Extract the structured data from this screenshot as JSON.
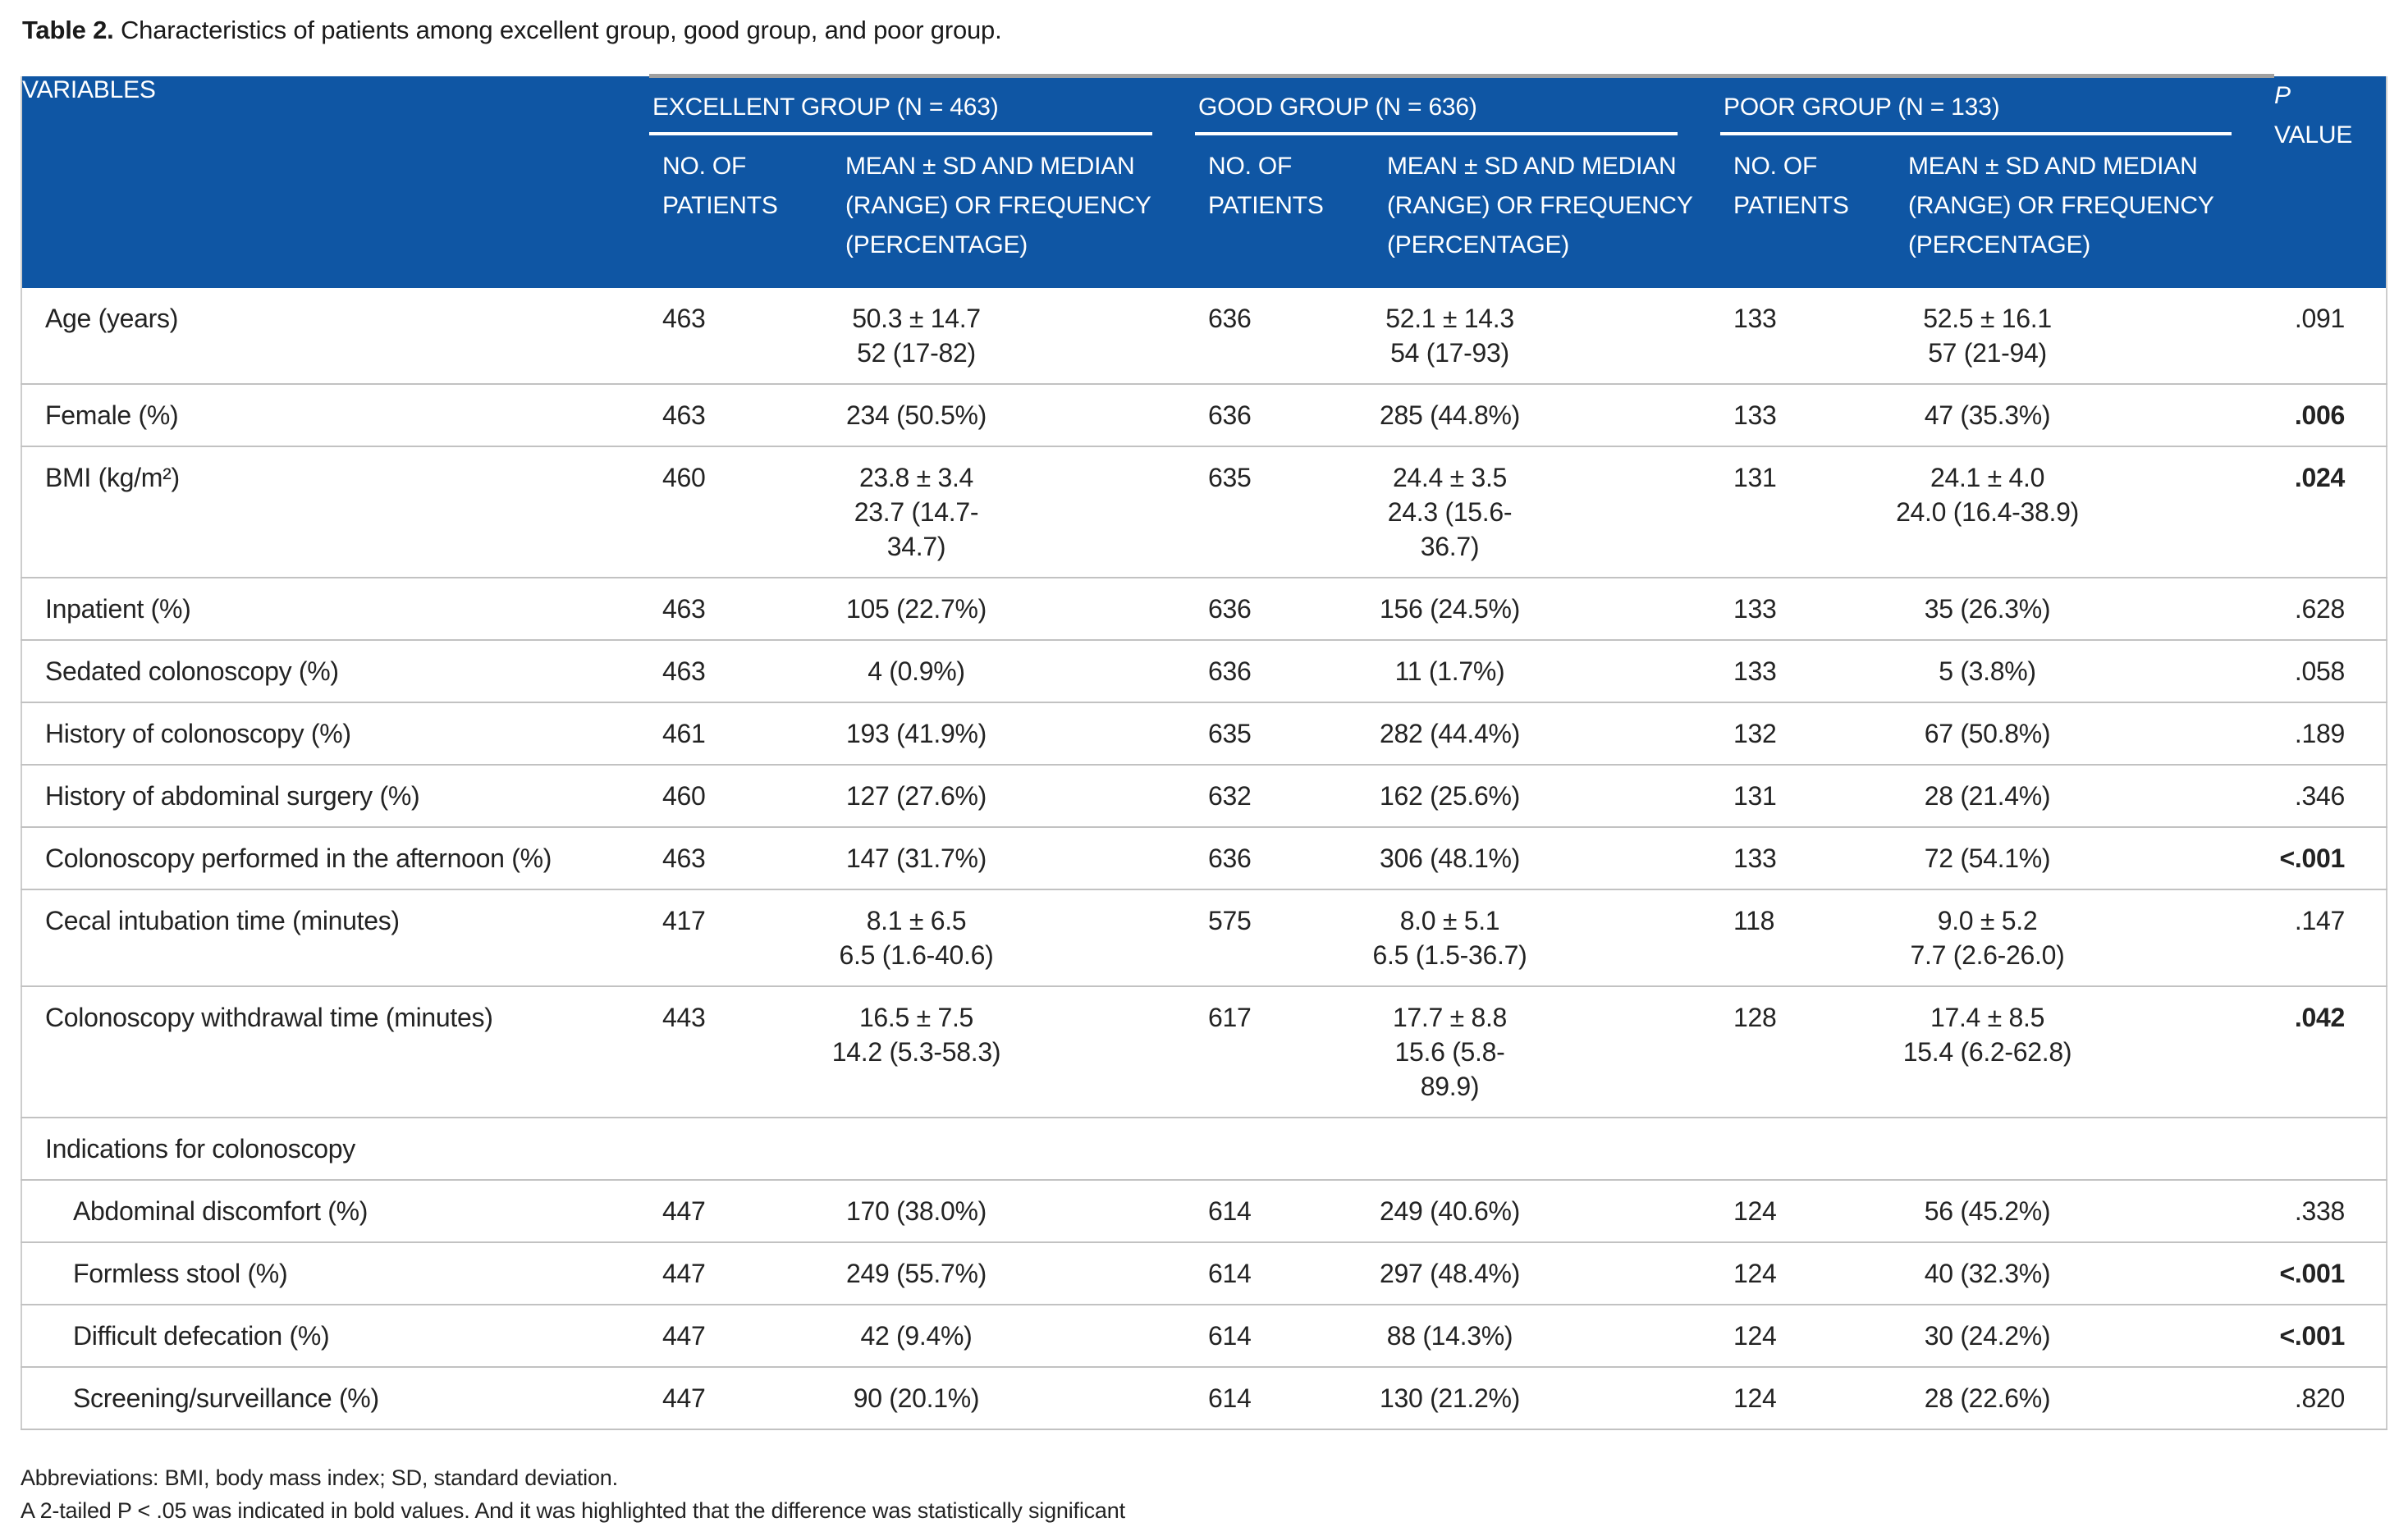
{
  "title": {
    "label": "Table 2.",
    "text": "Characteristics of patients among excellent group, good group, and poor group."
  },
  "header": {
    "variables": "VARIABLES",
    "groups": [
      {
        "name": "EXCELLENT GROUP (N = 463)"
      },
      {
        "name": "GOOD GROUP (N = 636)"
      },
      {
        "name": "POOR GROUP (N = 133)"
      }
    ],
    "sub_n": "NO. OF PATIENTS",
    "sub_mean": "MEAN ± SD AND MEDIAN (RANGE) OR FREQUENCY (PERCENTAGE)",
    "p_line1": "P",
    "p_line2": "VALUE"
  },
  "rows": [
    {
      "label": "Age (years)",
      "indent": false,
      "section": false,
      "groups": [
        {
          "n": "463",
          "line1": "50.3 ± 14.7",
          "line2": "52 (17-82)"
        },
        {
          "n": "636",
          "line1": "52.1 ± 14.3",
          "line2": "54 (17-93)"
        },
        {
          "n": "133",
          "line1": "52.5 ± 16.1",
          "line2": "57 (21-94)"
        }
      ],
      "p": ".091",
      "p_bold": false
    },
    {
      "label": "Female (%)",
      "indent": false,
      "section": false,
      "groups": [
        {
          "n": "463",
          "line1": "234 (50.5%)"
        },
        {
          "n": "636",
          "line1": "285 (44.8%)"
        },
        {
          "n": "133",
          "line1": "47 (35.3%)"
        }
      ],
      "p": ".006",
      "p_bold": true
    },
    {
      "label": "BMI (kg/m²)",
      "indent": false,
      "section": false,
      "groups": [
        {
          "n": "460",
          "line1": "23.8 ± 3.4",
          "line2": "23.7 (14.7-34.7)"
        },
        {
          "n": "635",
          "line1": "24.4 ± 3.5",
          "line2": "24.3 (15.6-36.7)"
        },
        {
          "n": "131",
          "line1": "24.1 ± 4.0",
          "line2": "24.0 (16.4-38.9)"
        }
      ],
      "p": ".024",
      "p_bold": true
    },
    {
      "label": "Inpatient (%)",
      "indent": false,
      "section": false,
      "groups": [
        {
          "n": "463",
          "line1": "105 (22.7%)"
        },
        {
          "n": "636",
          "line1": "156 (24.5%)"
        },
        {
          "n": "133",
          "line1": "35 (26.3%)"
        }
      ],
      "p": ".628",
      "p_bold": false
    },
    {
      "label": "Sedated colonoscopy (%)",
      "indent": false,
      "section": false,
      "groups": [
        {
          "n": "463",
          "line1": "4 (0.9%)"
        },
        {
          "n": "636",
          "line1": "11 (1.7%)"
        },
        {
          "n": "133",
          "line1": "5 (3.8%)"
        }
      ],
      "p": ".058",
      "p_bold": false
    },
    {
      "label": "History of colonoscopy (%)",
      "indent": false,
      "section": false,
      "groups": [
        {
          "n": "461",
          "line1": "193 (41.9%)"
        },
        {
          "n": "635",
          "line1": "282 (44.4%)"
        },
        {
          "n": "132",
          "line1": "67 (50.8%)"
        }
      ],
      "p": ".189",
      "p_bold": false
    },
    {
      "label": "History of abdominal surgery (%)",
      "indent": false,
      "section": false,
      "groups": [
        {
          "n": "460",
          "line1": "127 (27.6%)"
        },
        {
          "n": "632",
          "line1": "162 (25.6%)"
        },
        {
          "n": "131",
          "line1": "28 (21.4%)"
        }
      ],
      "p": ".346",
      "p_bold": false
    },
    {
      "label": "Colonoscopy performed in the afternoon (%)",
      "indent": false,
      "section": false,
      "groups": [
        {
          "n": "463",
          "line1": "147 (31.7%)"
        },
        {
          "n": "636",
          "line1": "306 (48.1%)"
        },
        {
          "n": "133",
          "line1": "72 (54.1%)"
        }
      ],
      "p": "<.001",
      "p_bold": true
    },
    {
      "label": "Cecal intubation time (minutes)",
      "indent": false,
      "section": false,
      "groups": [
        {
          "n": "417",
          "line1": "8.1 ± 6.5",
          "line2": "6.5 (1.6-40.6)"
        },
        {
          "n": "575",
          "line1": "8.0 ± 5.1",
          "line2": "6.5 (1.5-36.7)"
        },
        {
          "n": "118",
          "line1": "9.0 ± 5.2",
          "line2": "7.7 (2.6-26.0)"
        }
      ],
      "p": ".147",
      "p_bold": false
    },
    {
      "label": "Colonoscopy withdrawal time (minutes)",
      "indent": false,
      "section": false,
      "groups": [
        {
          "n": "443",
          "line1": "16.5 ± 7.5",
          "line2": "14.2 (5.3-58.3)"
        },
        {
          "n": "617",
          "line1": "17.7 ± 8.8",
          "line2": "15.6 (5.8-89.9)"
        },
        {
          "n": "128",
          "line1": "17.4 ± 8.5",
          "line2": "15.4 (6.2-62.8)"
        }
      ],
      "p": ".042",
      "p_bold": true
    },
    {
      "label": "Indications for colonoscopy",
      "indent": false,
      "section": true
    },
    {
      "label": "Abdominal discomfort (%)",
      "indent": true,
      "section": false,
      "groups": [
        {
          "n": "447",
          "line1": "170 (38.0%)"
        },
        {
          "n": "614",
          "line1": "249 (40.6%)"
        },
        {
          "n": "124",
          "line1": "56 (45.2%)"
        }
      ],
      "p": ".338",
      "p_bold": false
    },
    {
      "label": "Formless stool (%)",
      "indent": true,
      "section": false,
      "groups": [
        {
          "n": "447",
          "line1": "249 (55.7%)"
        },
        {
          "n": "614",
          "line1": "297 (48.4%)"
        },
        {
          "n": "124",
          "line1": "40 (32.3%)"
        }
      ],
      "p": "<.001",
      "p_bold": true
    },
    {
      "label": "Difficult defecation (%)",
      "indent": true,
      "section": false,
      "groups": [
        {
          "n": "447",
          "line1": "42 (9.4%)"
        },
        {
          "n": "614",
          "line1": "88 (14.3%)"
        },
        {
          "n": "124",
          "line1": "30 (24.2%)"
        }
      ],
      "p": "<.001",
      "p_bold": true
    },
    {
      "label": "Screening/surveillance (%)",
      "indent": true,
      "section": false,
      "groups": [
        {
          "n": "447",
          "line1": "90 (20.1%)"
        },
        {
          "n": "614",
          "line1": "130 (21.2%)"
        },
        {
          "n": "124",
          "line1": "28 (22.6%)"
        }
      ],
      "p": ".820",
      "p_bold": false
    }
  ],
  "footnotes": {
    "line1": "Abbreviations: BMI, body mass index; SD, standard deviation.",
    "line2": "A 2-tailed P < .05  was indicated in bold values. And it was highlighted that the difference was statistically significant"
  },
  "colors": {
    "header_blue": "#0F56A4",
    "divider_gray": "#c2c2c2",
    "top_strip_gray": "#a0a0a0"
  }
}
